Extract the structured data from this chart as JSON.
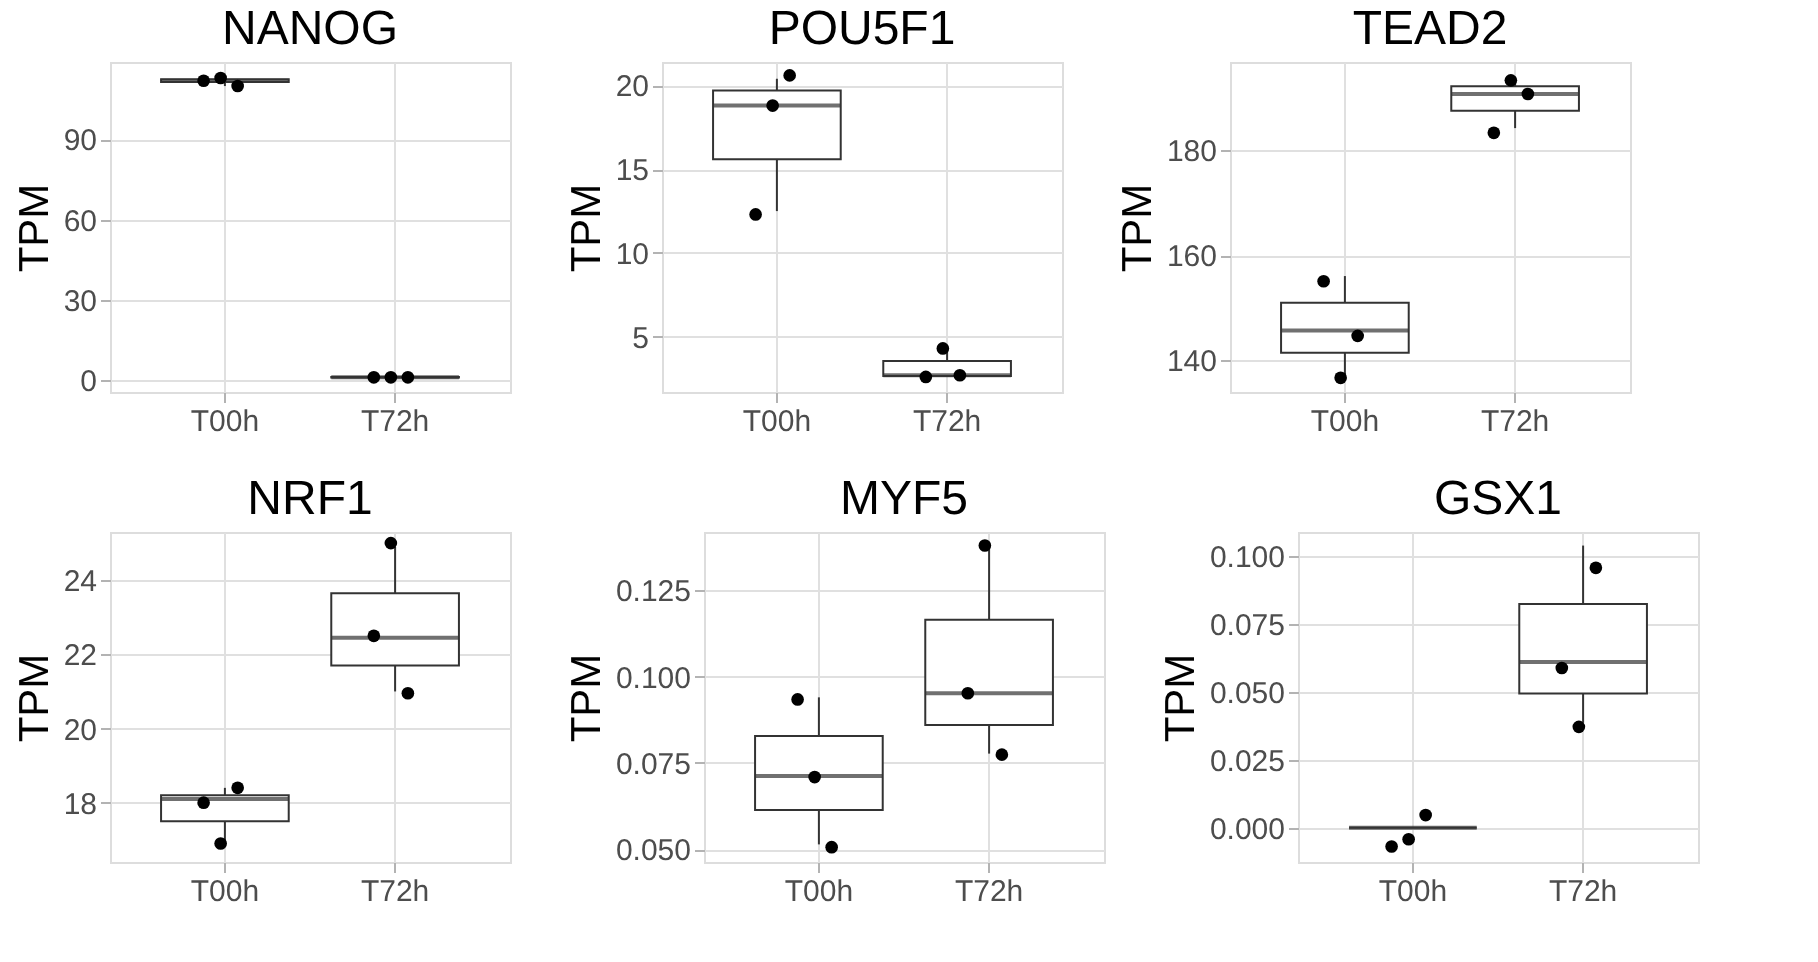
{
  "chart_data": [
    {
      "type": "box",
      "color": "#333333",
      "title": "NANOG",
      "ylabel": "TPM",
      "categories": [
        "T00h",
        "T72h"
      ],
      "grid": true,
      "ylim": [
        -4.5,
        119
      ],
      "yticks": [
        0,
        30,
        60,
        90
      ],
      "boxes": [
        {
          "low": 110,
          "q1": 111.5,
          "median": 112,
          "q3": 112.5,
          "high": 113
        },
        {
          "low": 0.8,
          "q1": 0.9,
          "median": 1,
          "q3": 1.1,
          "high": 1.2
        }
      ],
      "series": [
        {
          "type": "scatter",
          "color": "#000000",
          "x": [
            "T00h",
            "T00h",
            "T00h",
            "T72h",
            "T72h",
            "T72h"
          ],
          "values": [
            112,
            113,
            110,
            1,
            1,
            1
          ]
        }
      ]
    },
    {
      "type": "box",
      "color": "#333333",
      "title": "POU5F1",
      "ylabel": "TPM",
      "categories": [
        "T00h",
        "T72h"
      ],
      "grid": true,
      "ylim": [
        1.7,
        21.4
      ],
      "yticks": [
        5,
        10,
        15,
        20
      ],
      "boxes": [
        {
          "low": 12.5,
          "q1": 15.6,
          "median": 18.8,
          "q3": 19.7,
          "high": 20.4
        },
        {
          "low": 2.6,
          "q1": 2.65,
          "median": 2.7,
          "q3": 3.55,
          "high": 4.3
        }
      ],
      "series": [
        {
          "type": "scatter",
          "color": "#000000",
          "x": [
            "T00h",
            "T00h",
            "T00h",
            "T72h",
            "T72h",
            "T72h"
          ],
          "values": [
            12.3,
            18.8,
            20.6,
            2.6,
            4.3,
            2.7
          ]
        }
      ]
    },
    {
      "type": "box",
      "color": "#333333",
      "title": "TEAD2",
      "ylabel": "TPM",
      "categories": [
        "T00h",
        "T72h"
      ],
      "grid": true,
      "ylim": [
        133.9,
        196.8
      ],
      "yticks": [
        140,
        160,
        180
      ],
      "boxes": [
        {
          "low": 137,
          "q1": 141.4,
          "median": 145.6,
          "q3": 150.9,
          "high": 156
        },
        {
          "low": 184.2,
          "q1": 187.5,
          "median": 190.7,
          "q3": 192.2,
          "high": 194
        }
      ],
      "series": [
        {
          "type": "scatter",
          "color": "#000000",
          "x": [
            "T00h",
            "T00h",
            "T00h",
            "T72h",
            "T72h",
            "T72h"
          ],
          "values": [
            155,
            136.6,
            144.6,
            183.3,
            193.3,
            190.7
          ]
        }
      ]
    },
    {
      "type": "box",
      "color": "#333333",
      "title": "NRF1",
      "ylabel": "TPM",
      "categories": [
        "T00h",
        "T72h"
      ],
      "grid": true,
      "ylim": [
        16.4,
        25.3
      ],
      "yticks": [
        18,
        20,
        22,
        24
      ],
      "boxes": [
        {
          "low": 16.9,
          "q1": 17.5,
          "median": 18.1,
          "q3": 18.2,
          "high": 18.4
        },
        {
          "low": 21.0,
          "q1": 21.7,
          "median": 22.45,
          "q3": 23.65,
          "high": 24.9
        }
      ],
      "series": [
        {
          "type": "scatter",
          "color": "#000000",
          "x": [
            "T00h",
            "T00h",
            "T00h",
            "T72h",
            "T72h",
            "T72h"
          ],
          "values": [
            18.0,
            16.9,
            18.4,
            22.5,
            25.0,
            20.95
          ]
        }
      ]
    },
    {
      "type": "box",
      "color": "#333333",
      "title": "MYF5",
      "ylabel": "TPM",
      "categories": [
        "T00h",
        "T72h"
      ],
      "grid": true,
      "ylim": [
        0.0463,
        0.1419
      ],
      "yticks": [
        {
          "value": 0.05,
          "label": "0.050"
        },
        {
          "value": 0.075,
          "label": "0.075"
        },
        {
          "value": 0.1,
          "label": "0.100"
        },
        {
          "value": 0.125,
          "label": "0.125"
        }
      ],
      "boxes": [
        {
          "low": 0.0514,
          "q1": 0.0614,
          "median": 0.0712,
          "q3": 0.0828,
          "high": 0.094
        },
        {
          "low": 0.0777,
          "q1": 0.086,
          "median": 0.0952,
          "q3": 0.1165,
          "high": 0.138
        }
      ],
      "series": [
        {
          "type": "scatter",
          "color": "#000000",
          "x": [
            "T00h",
            "T00h",
            "T00h",
            "T72h",
            "T72h",
            "T72h"
          ],
          "values": [
            0.0934,
            0.0709,
            0.0506,
            0.0952,
            0.138,
            0.0774
          ]
        }
      ]
    },
    {
      "type": "box",
      "color": "#333333",
      "title": "GSX1",
      "ylabel": "TPM",
      "categories": [
        "T00h",
        "T72h"
      ],
      "grid": true,
      "ylim": [
        -0.0126,
        0.109
      ],
      "yticks": [
        {
          "value": 0,
          "label": "0.000"
        },
        {
          "value": 0.025,
          "label": "0.025"
        },
        {
          "value": 0.05,
          "label": "0.050"
        },
        {
          "value": 0.075,
          "label": "0.075"
        },
        {
          "value": 0.1,
          "label": "0.100"
        }
      ],
      "boxes": [
        {
          "low": 0,
          "q1": 0,
          "median": 0,
          "q3": 0,
          "high": 0
        },
        {
          "low": 0.0387,
          "q1": 0.0495,
          "median": 0.0611,
          "q3": 0.0825,
          "high": 0.104
        }
      ],
      "series": [
        {
          "type": "scatter",
          "color": "#000000",
          "x": [
            "T00h",
            "T00h",
            "T00h",
            "T72h",
            "T72h",
            "T72h"
          ],
          "values": [
            -0.0069,
            -0.0042,
            0.0047,
            0.0589,
            0.0372,
            0.0958
          ]
        }
      ]
    }
  ]
}
